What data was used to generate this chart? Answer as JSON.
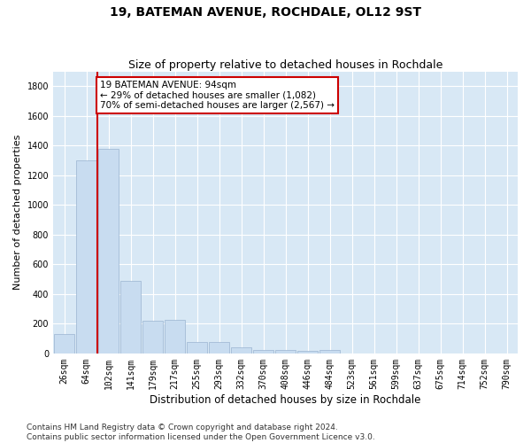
{
  "title": "19, BATEMAN AVENUE, ROCHDALE, OL12 9ST",
  "subtitle": "Size of property relative to detached houses in Rochdale",
  "xlabel": "Distribution of detached houses by size in Rochdale",
  "ylabel": "Number of detached properties",
  "categories": [
    "26sqm",
    "64sqm",
    "102sqm",
    "141sqm",
    "179sqm",
    "217sqm",
    "255sqm",
    "293sqm",
    "332sqm",
    "370sqm",
    "408sqm",
    "446sqm",
    "484sqm",
    "523sqm",
    "561sqm",
    "599sqm",
    "637sqm",
    "675sqm",
    "714sqm",
    "752sqm",
    "790sqm"
  ],
  "values": [
    130,
    1300,
    1380,
    490,
    220,
    225,
    75,
    75,
    40,
    25,
    20,
    15,
    20,
    0,
    0,
    0,
    0,
    0,
    0,
    0,
    0
  ],
  "bar_color": "#c8dcf0",
  "bar_edge_color": "#9ab4d0",
  "vline_color": "#cc0000",
  "annotation_text": "19 BATEMAN AVENUE: 94sqm\n← 29% of detached houses are smaller (1,082)\n70% of semi-detached houses are larger (2,567) →",
  "annotation_box_facecolor": "#ffffff",
  "annotation_box_edgecolor": "#cc0000",
  "ylim": [
    0,
    1900
  ],
  "yticks": [
    0,
    200,
    400,
    600,
    800,
    1000,
    1200,
    1400,
    1600,
    1800
  ],
  "footer_line1": "Contains HM Land Registry data © Crown copyright and database right 2024.",
  "footer_line2": "Contains public sector information licensed under the Open Government Licence v3.0.",
  "plot_bg_color": "#d8e8f5",
  "title_fontsize": 10,
  "subtitle_fontsize": 9,
  "xlabel_fontsize": 8.5,
  "ylabel_fontsize": 8,
  "tick_fontsize": 7,
  "footer_fontsize": 6.5,
  "annot_fontsize": 7.5
}
